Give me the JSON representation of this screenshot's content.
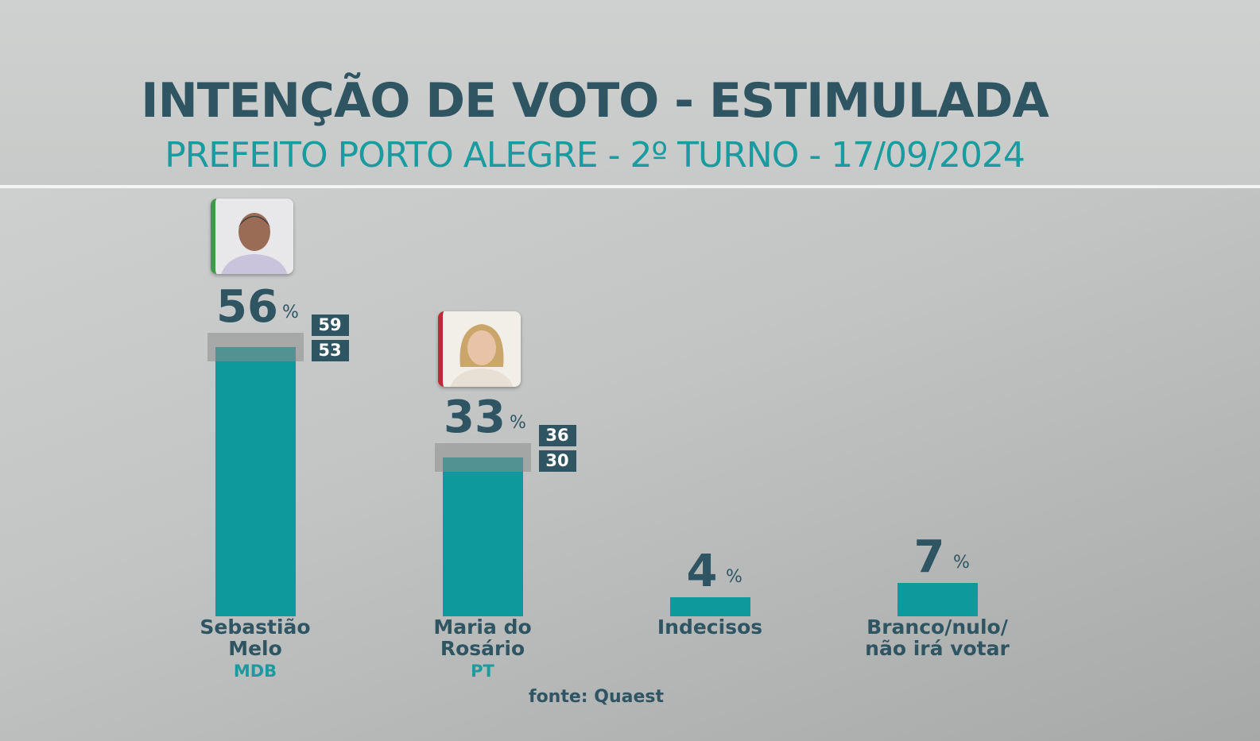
{
  "chart_data": {
    "type": "bar",
    "title": "INTENÇÃO DE VOTO - ESTIMULADA",
    "subtitle": "PREFEITO PORTO ALEGRE - 2º TURNO - 17/09/2024",
    "categories": [
      "Sebastião Melo",
      "Maria do Rosário",
      "Indecisos",
      "Branco/nulo/ não irá votar"
    ],
    "parties": [
      "MDB",
      "PT",
      null,
      null
    ],
    "values": [
      56,
      33,
      4,
      7
    ],
    "unit": "%",
    "upper": [
      59,
      36,
      null,
      null
    ],
    "lower": [
      53,
      30,
      null,
      null
    ],
    "color": "#0e9a9c",
    "source": "fonte: Quaest"
  }
}
